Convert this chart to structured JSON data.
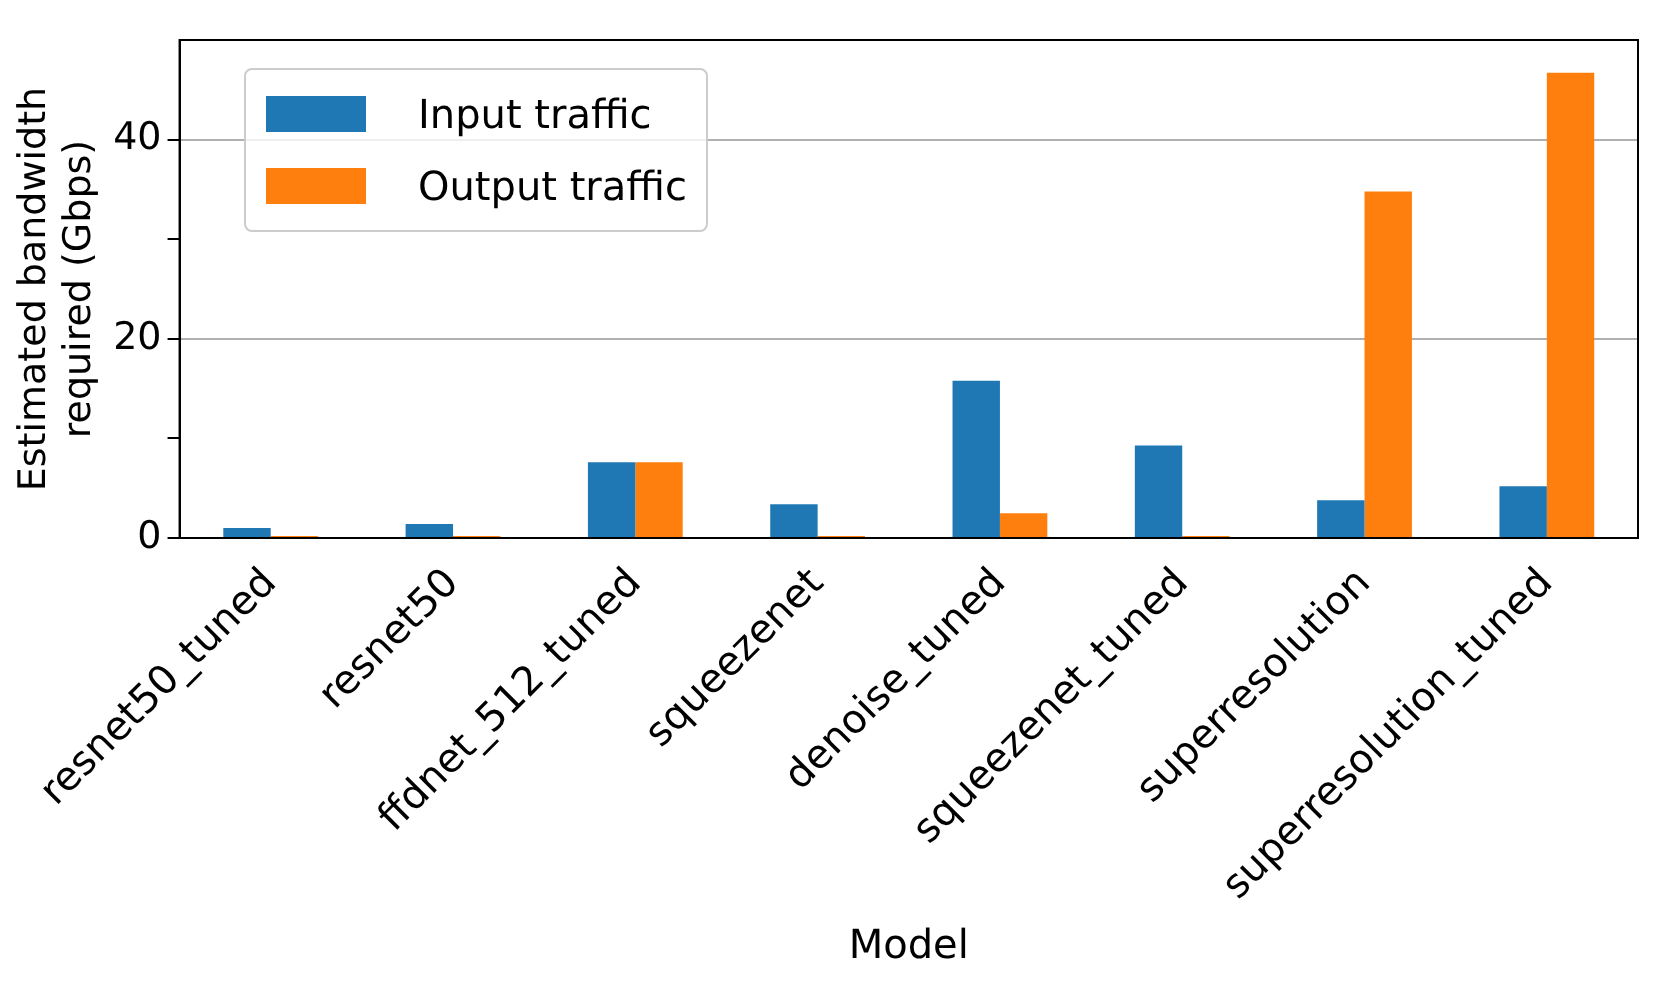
{
  "chart_data": {
    "type": "bar",
    "xlabel": "Model",
    "ylabel": "Estimated bandwidth\nrequired (Gbps)",
    "categories": [
      "resnet50_tuned",
      "resnet50",
      "ffdnet_512_tuned",
      "squeezenet",
      "denoise_tuned",
      "squeezenet_tuned",
      "superresolution",
      "superresolution_tuned"
    ],
    "series": [
      {
        "name": "Input traffic",
        "color": "#1f77b4",
        "values": [
          1.0,
          1.4,
          7.6,
          3.4,
          15.8,
          9.3,
          3.8,
          5.2
        ]
      },
      {
        "name": "Output traffic",
        "color": "#ff7f0e",
        "values": [
          0.2,
          0.2,
          7.6,
          0.2,
          2.5,
          0.2,
          34.8,
          46.7
        ]
      }
    ],
    "ylim": [
      0,
      50
    ],
    "yticks": [
      0,
      {
        "value": 10,
        "label": null
      },
      20,
      {
        "value": 30,
        "label": null
      },
      40
    ],
    "grid": "y",
    "legend": "top left"
  }
}
